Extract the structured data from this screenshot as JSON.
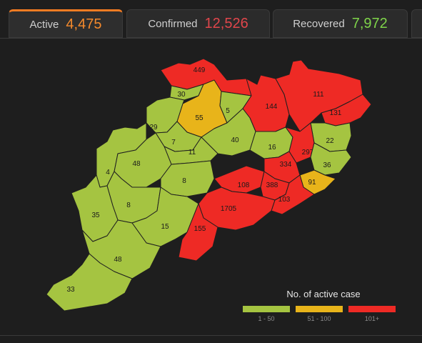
{
  "tabs": [
    {
      "label": "Active",
      "value": "4,475"
    },
    {
      "label": "Confirmed",
      "value": "12,526"
    },
    {
      "label": "Recovered",
      "value": "7,972"
    }
  ],
  "colors": {
    "low": "#a5c441",
    "mid": "#e8b41a",
    "high": "#ee2a25"
  },
  "legend": {
    "title": "No. of active case",
    "items": [
      {
        "label": "1 - 50",
        "category": "low"
      },
      {
        "label": "51 - 100",
        "category": "mid"
      },
      {
        "label": "101+",
        "category": "high"
      }
    ]
  },
  "districts": [
    {
      "value": "449",
      "category": "high"
    },
    {
      "value": "30",
      "category": "low"
    },
    {
      "value": "55",
      "category": "mid"
    },
    {
      "value": "5",
      "category": "low"
    },
    {
      "value": "144",
      "category": "high"
    },
    {
      "value": "111",
      "category": "high"
    },
    {
      "value": "131",
      "category": "high"
    },
    {
      "value": "29",
      "category": "low"
    },
    {
      "value": "7",
      "category": "low"
    },
    {
      "value": "40",
      "category": "low"
    },
    {
      "value": "16",
      "category": "low"
    },
    {
      "value": "22",
      "category": "low"
    },
    {
      "value": "11",
      "category": "low"
    },
    {
      "value": "297",
      "category": "high"
    },
    {
      "value": "4",
      "category": "low"
    },
    {
      "value": "48",
      "category": "low"
    },
    {
      "value": "334",
      "category": "high"
    },
    {
      "value": "36",
      "category": "low"
    },
    {
      "value": "8",
      "category": "low"
    },
    {
      "value": "108",
      "category": "high"
    },
    {
      "value": "388",
      "category": "high"
    },
    {
      "value": "91",
      "category": "mid"
    },
    {
      "value": "8",
      "category": "low"
    },
    {
      "value": "103",
      "category": "high"
    },
    {
      "value": "35",
      "category": "low"
    },
    {
      "value": "1705",
      "category": "high"
    },
    {
      "value": "15",
      "category": "low"
    },
    {
      "value": "155",
      "category": "high"
    },
    {
      "value": "48",
      "category": "low"
    },
    {
      "value": "33",
      "category": "low"
    }
  ]
}
